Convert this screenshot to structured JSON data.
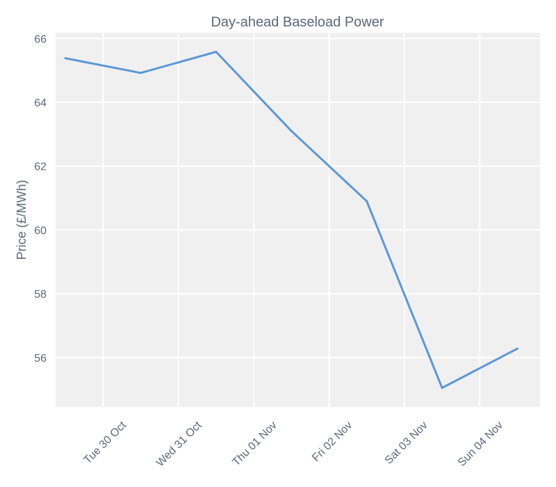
{
  "chart_data": {
    "type": "line",
    "title": "Day-ahead Baseload Power",
    "xlabel": "",
    "ylabel": "Price (£/MWh)",
    "x": [
      "2018-10-29T12:00",
      "2018-10-30T12:00",
      "2018-10-31T12:00",
      "2018-11-01T12:00",
      "2018-11-02T12:00",
      "2018-11-03T12:00",
      "2018-11-04T12:00"
    ],
    "series": [
      {
        "values": [
          65.38,
          64.92,
          65.58,
          63.1,
          60.9,
          55.05,
          56.28
        ]
      }
    ],
    "x_ticks": [
      "Tue 30 Oct",
      "Wed 31 Oct",
      "Thu 01 Nov",
      "Fri 02 Nov",
      "Sat 03 Nov",
      "Sun 04 Nov"
    ],
    "y_ticks": [
      56,
      58,
      60,
      62,
      64,
      66
    ],
    "ylim": [
      54.45,
      66.18
    ],
    "grid": true,
    "colors": {
      "line": "#5b97d6",
      "plot_background": "#f0f0f0",
      "grid": "#ffffff",
      "text": "#5a6878"
    }
  }
}
